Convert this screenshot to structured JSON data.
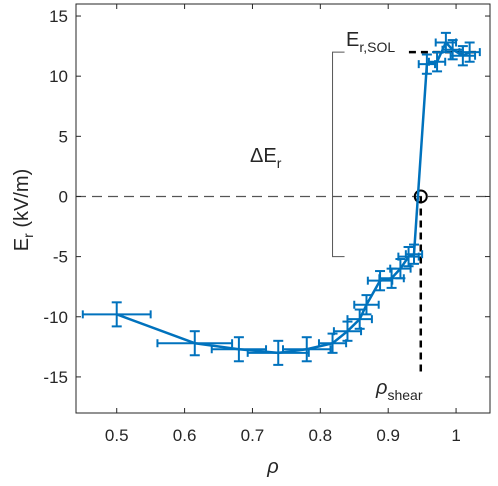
{
  "chart_data": {
    "type": "line",
    "xlabel": "ρ",
    "ylabel_main": "E",
    "ylabel_sub": "r",
    "ylabel_unit": " (kV/m)",
    "xlim": [
      0.44,
      1.05
    ],
    "ylim": [
      -18,
      16
    ],
    "xticks": [
      0.5,
      0.6,
      0.7,
      0.8,
      0.9,
      1.0
    ],
    "xtick_labels": [
      "0.5",
      "0.6",
      "0.7",
      "0.8",
      "0.9",
      "1"
    ],
    "yticks": [
      -15,
      -10,
      -5,
      0,
      5,
      10,
      15
    ],
    "ytick_labels": [
      "-15",
      "-10",
      "-5",
      "0",
      "5",
      "10",
      "15"
    ],
    "series": [
      {
        "color": "#0072BD",
        "points": [
          {
            "x": 0.5,
            "y": -9.8,
            "xerr": 0.05,
            "yerr": 1.0
          },
          {
            "x": 0.615,
            "y": -12.2,
            "xerr": 0.055,
            "yerr": 1.0
          },
          {
            "x": 0.68,
            "y": -12.7,
            "xerr": 0.04,
            "yerr": 1.0
          },
          {
            "x": 0.738,
            "y": -13.0,
            "xerr": 0.045,
            "yerr": 1.0
          },
          {
            "x": 0.78,
            "y": -12.7,
            "xerr": 0.035,
            "yerr": 1.0
          },
          {
            "x": 0.818,
            "y": -12.2,
            "xerr": 0.02,
            "yerr": 0.8
          },
          {
            "x": 0.84,
            "y": -11.2,
            "xerr": 0.02,
            "yerr": 0.8
          },
          {
            "x": 0.858,
            "y": -10.2,
            "xerr": 0.018,
            "yerr": 0.8
          },
          {
            "x": 0.868,
            "y": -9.0,
            "xerr": 0.018,
            "yerr": 0.8
          },
          {
            "x": 0.888,
            "y": -7.0,
            "xerr": 0.018,
            "yerr": 0.8
          },
          {
            "x": 0.905,
            "y": -6.8,
            "xerr": 0.018,
            "yerr": 0.8
          },
          {
            "x": 0.918,
            "y": -6.0,
            "xerr": 0.015,
            "yerr": 0.8
          },
          {
            "x": 0.93,
            "y": -5.0,
            "xerr": 0.015,
            "yerr": 0.8
          },
          {
            "x": 0.938,
            "y": -4.8,
            "xerr": 0.012,
            "yerr": 0.8
          },
          {
            "x": 0.957,
            "y": 11.0,
            "xerr": 0.012,
            "yerr": 0.8
          },
          {
            "x": 0.972,
            "y": 11.2,
            "xerr": 0.012,
            "yerr": 0.8
          },
          {
            "x": 0.985,
            "y": 12.8,
            "xerr": 0.015,
            "yerr": 0.8
          },
          {
            "x": 0.995,
            "y": 12.2,
            "xerr": 0.015,
            "yerr": 0.8
          },
          {
            "x": 1.01,
            "y": 11.7,
            "xerr": 0.018,
            "yerr": 0.8
          },
          {
            "x": 1.02,
            "y": 12.0,
            "xerr": 0.015,
            "yerr": 0.8
          }
        ]
      }
    ],
    "zero_line": {
      "y": 0,
      "style": "dashed",
      "color": "#555555"
    },
    "shear_point": {
      "x": 0.948,
      "y": 0
    },
    "sol_level": {
      "y": 12.0,
      "x_from": 0.96,
      "x_to": 1.035
    },
    "delta_bracket": {
      "x": 0.818,
      "y_top": 12.0,
      "y_bottom": -5.0
    },
    "annotations": {
      "e_sol_main": "E",
      "e_sol_sub": "r,SOL",
      "delta_main": "ΔE",
      "delta_sub": "r",
      "rho_main": "ρ",
      "rho_sub": "shear"
    },
    "grid": false,
    "legend": "none"
  }
}
